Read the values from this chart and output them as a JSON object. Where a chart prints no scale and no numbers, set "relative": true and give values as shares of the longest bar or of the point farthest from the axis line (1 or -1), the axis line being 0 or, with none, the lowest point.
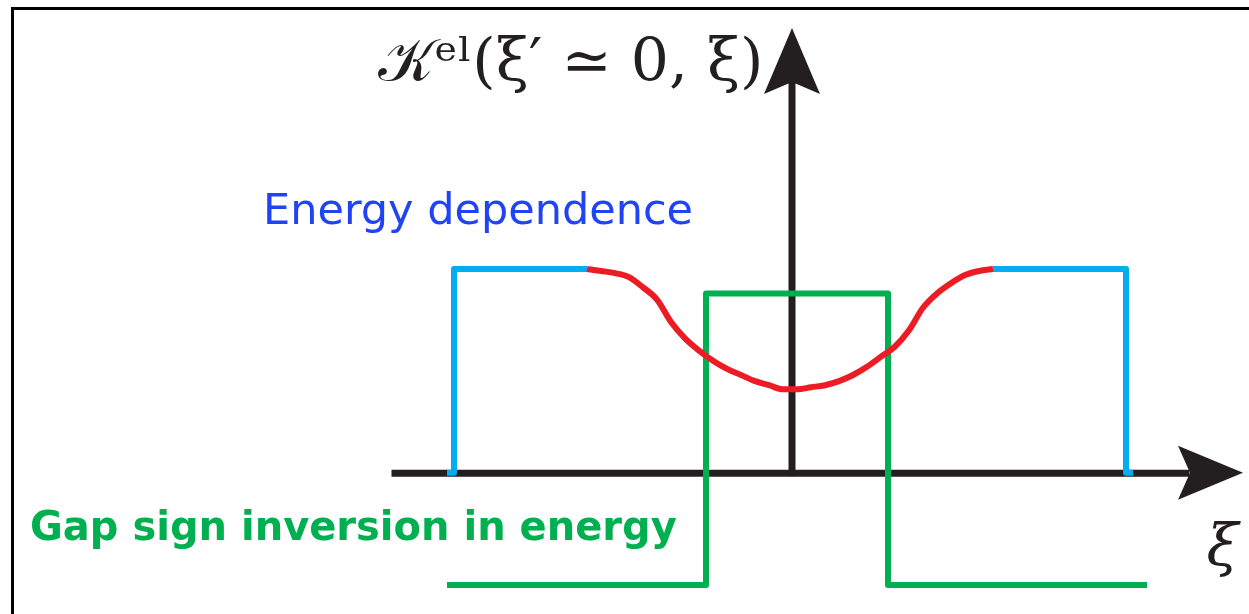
{
  "chart_data": {
    "type": "line",
    "relative": true,
    "xlabel": "ξ",
    "ylabel": "𝒦ᵉˡ(ξ′ ≃ 0, ξ)",
    "annotations": [
      "Energy dependence",
      "Gap sign inversion in energy"
    ],
    "categories": [
      null,
      null,
      null,
      null,
      null,
      null,
      null,
      null,
      null,
      null,
      null,
      null,
      null,
      null,
      null,
      null,
      null,
      null,
      null,
      null,
      null,
      null,
      null,
      null,
      null,
      null,
      null,
      null,
      null,
      null,
      null,
      null,
      null,
      null,
      null,
      null,
      null,
      null,
      null,
      null,
      null,
      null,
      null,
      null,
      null,
      null,
      null,
      null,
      null,
      null,
      null,
      null,
      null,
      null,
      null,
      null,
      null,
      null
    ],
    "series": [
      {
        "type": "step",
        "color": "#00aeef",
        "values": [
          null,
          null,
          null,
          null,
          0,
          1,
          1,
          1,
          1,
          1,
          1,
          1,
          1,
          1,
          1,
          null,
          null,
          null,
          null,
          null,
          null,
          null,
          null,
          null,
          null,
          null,
          null,
          null,
          null,
          null,
          null,
          null,
          null,
          null,
          null,
          null,
          null,
          null,
          null,
          null,
          null,
          null,
          null,
          1,
          1,
          1,
          1,
          1,
          1,
          1,
          1,
          1,
          1,
          0,
          null,
          null,
          null,
          null
        ]
      },
      {
        "type": "step",
        "color": "#00b050",
        "values": [
          null,
          null,
          null,
          null,
          -0.55,
          -0.55,
          -0.55,
          -0.55,
          -0.55,
          -0.55,
          -0.55,
          -0.55,
          -0.55,
          -0.55,
          -0.55,
          -0.55,
          -0.55,
          -0.55,
          -0.55,
          -0.55,
          -0.55,
          -0.55,
          -0.55,
          0.88,
          0.88,
          0.88,
          0.88,
          0.88,
          0.88,
          0.88,
          0.88,
          0.88,
          0.88,
          0.88,
          0.88,
          0.88,
          -0.55,
          -0.55,
          -0.55,
          -0.55,
          -0.55,
          -0.55,
          -0.55,
          -0.55,
          -0.55,
          -0.55,
          -0.55,
          -0.55,
          -0.55,
          -0.55,
          -0.55,
          -0.55,
          -0.55,
          -0.55,
          -0.55,
          null,
          null,
          null
        ]
      },
      {
        "color": "#ed1c24",
        "values": [
          null,
          null,
          null,
          null,
          null,
          null,
          null,
          null,
          null,
          null,
          null,
          null,
          null,
          null,
          1,
          0.99,
          0.98,
          0.96,
          0.91,
          0.85,
          0.74,
          0.66,
          0.6,
          0.55,
          0.51,
          0.48,
          0.45,
          0.43,
          0.41,
          0.41,
          0.42,
          0.43,
          0.45,
          0.48,
          0.52,
          0.57,
          0.62,
          0.7,
          0.81,
          0.88,
          0.93,
          0.97,
          0.99,
          1,
          null,
          null,
          null,
          null,
          null,
          null,
          null,
          null,
          null,
          null,
          null,
          null,
          null,
          null
        ]
      }
    ]
  }
}
